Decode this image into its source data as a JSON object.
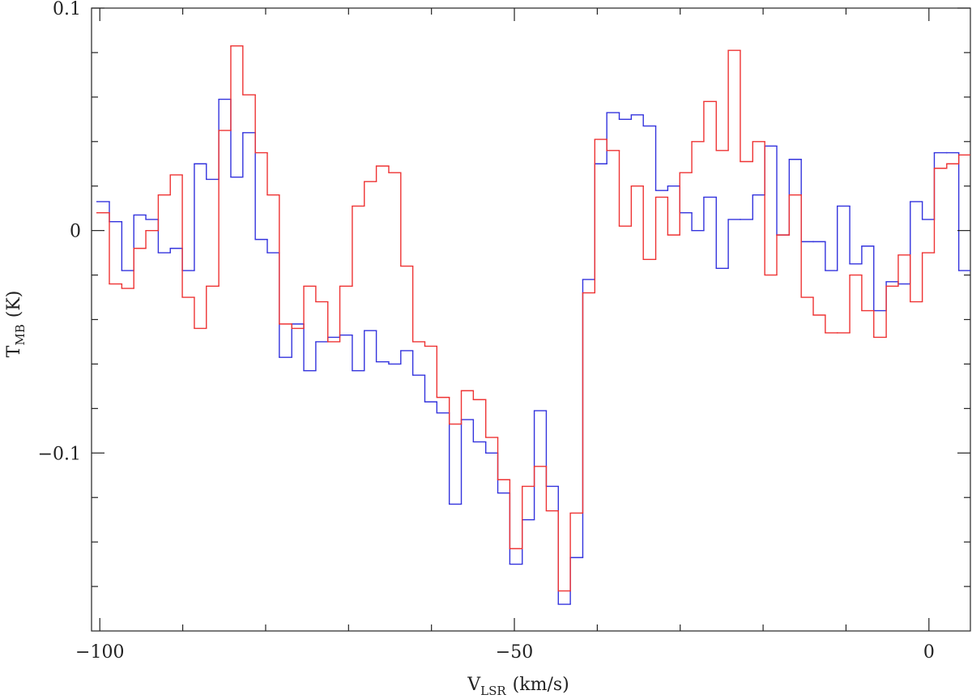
{
  "chart_data": {
    "type": "step",
    "xlabel": {
      "main": "V",
      "sub": "LSR",
      "unit": "(km/s)"
    },
    "ylabel": {
      "main": "T",
      "sub": "MB",
      "unit": "(K)"
    },
    "xlim": [
      -101,
      5
    ],
    "ylim": [
      -0.18,
      0.1
    ],
    "xticks": [
      {
        "value": -100,
        "label": "−100"
      },
      {
        "value": -50,
        "label": "−50"
      },
      0
    ],
    "yticks": [
      0.1,
      0,
      {
        "value": -0.1,
        "label": "−0.1"
      }
    ],
    "xticks_minor": [
      -90,
      -80,
      -70,
      -60,
      -40,
      -30,
      -20,
      -10
    ],
    "yticks_minor": [
      0.08,
      0.06,
      0.04,
      0.02,
      -0.02,
      -0.04,
      -0.06,
      -0.08,
      -0.12,
      -0.14,
      -0.16
    ],
    "x": [
      -99.6,
      -98.1,
      -96.6,
      -95.2,
      -93.7,
      -92.2,
      -90.8,
      -89.3,
      -87.9,
      -86.4,
      -84.9,
      -83.5,
      -82.0,
      -80.5,
      -79.1,
      -77.6,
      -76.1,
      -74.7,
      -73.2,
      -71.8,
      -70.3,
      -68.8,
      -67.4,
      -65.9,
      -64.4,
      -63.0,
      -61.5,
      -60.1,
      -58.6,
      -57.1,
      -55.7,
      -54.2,
      -52.7,
      -51.3,
      -49.8,
      -48.3,
      -46.9,
      -45.4,
      -44.0,
      -42.5,
      -41.0,
      -39.6,
      -38.1,
      -36.6,
      -35.2,
      -33.7,
      -32.2,
      -30.8,
      -29.3,
      -27.9,
      -26.4,
      -24.9,
      -23.5,
      -22.0,
      -20.5,
      -19.1,
      -17.6,
      -16.1,
      -14.7,
      -13.2,
      -11.8,
      -10.3,
      -8.8,
      -7.4,
      -5.9,
      -4.4,
      -3.0,
      -1.5,
      -0.1,
      1.4,
      2.9,
      4.3
    ],
    "series": [
      {
        "name": "blue",
        "color": "#3333dd",
        "values": [
          0.013,
          0.004,
          -0.018,
          0.007,
          0.005,
          -0.01,
          -0.008,
          -0.018,
          0.03,
          0.023,
          0.059,
          0.024,
          0.044,
          -0.004,
          -0.01,
          -0.057,
          -0.042,
          -0.063,
          -0.05,
          -0.048,
          -0.047,
          -0.063,
          -0.045,
          -0.059,
          -0.06,
          -0.054,
          -0.065,
          -0.077,
          -0.082,
          -0.123,
          -0.085,
          -0.095,
          -0.1,
          -0.118,
          -0.15,
          -0.13,
          -0.081,
          -0.115,
          -0.168,
          -0.147,
          -0.022,
          0.03,
          0.053,
          0.05,
          0.052,
          0.047,
          0.018,
          0.02,
          0.008,
          0.0,
          0.015,
          -0.017,
          0.005,
          0.005,
          0.016,
          0.038,
          -0.002,
          0.032,
          -0.005,
          -0.005,
          -0.018,
          0.011,
          -0.015,
          -0.007,
          -0.036,
          -0.023,
          -0.024,
          0.013,
          0.005,
          0.035,
          0.035,
          -0.018
        ]
      },
      {
        "name": "red",
        "color": "#ee3333",
        "values": [
          0.008,
          -0.024,
          -0.026,
          -0.008,
          0.0,
          0.016,
          0.025,
          -0.03,
          -0.044,
          -0.025,
          0.045,
          0.083,
          0.061,
          0.035,
          0.016,
          -0.042,
          -0.044,
          -0.025,
          -0.032,
          -0.05,
          -0.025,
          0.011,
          0.022,
          0.029,
          0.026,
          -0.016,
          -0.05,
          -0.052,
          -0.075,
          -0.087,
          -0.072,
          -0.076,
          -0.093,
          -0.112,
          -0.143,
          -0.115,
          -0.106,
          -0.126,
          -0.162,
          -0.127,
          -0.028,
          0.041,
          0.036,
          0.002,
          0.02,
          -0.013,
          0.015,
          -0.002,
          0.026,
          0.04,
          0.058,
          0.036,
          0.081,
          0.031,
          0.04,
          -0.02,
          -0.002,
          0.016,
          -0.03,
          -0.038,
          -0.046,
          -0.046,
          -0.02,
          -0.036,
          -0.048,
          -0.025,
          -0.011,
          -0.032,
          -0.01,
          0.028,
          0.03,
          0.034
        ]
      }
    ]
  }
}
